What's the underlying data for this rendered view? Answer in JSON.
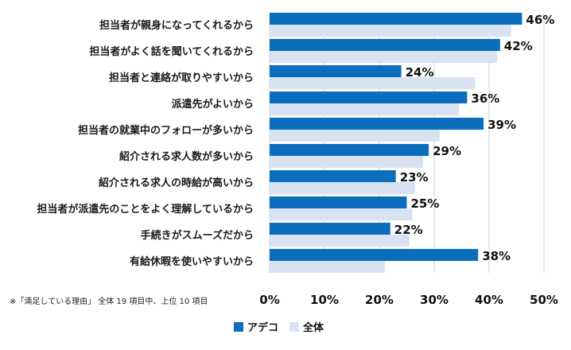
{
  "chart_data": {
    "type": "bar",
    "orientation": "horizontal",
    "categories": [
      "担当者が親身になってくれるから",
      "担当者がよく話を聞いてくれるから",
      "担当者と連絡が取りやすいから",
      "派遣先がよいから",
      "担当者の就業中のフォローが多いから",
      "紹介される求人数が多いから",
      "紹介される求人の時給が高いから",
      "担当者が派遣先のことをよく理解しているから",
      "手続きがスムーズだから",
      "有給休暇を使いやすいから"
    ],
    "series": [
      {
        "name": "アデコ",
        "color": "#0a6ebd",
        "values": [
          46,
          42,
          24,
          36,
          39,
          29,
          23,
          25,
          22,
          38
        ],
        "labels": [
          "46%",
          "42%",
          "24%",
          "36%",
          "39%",
          "29%",
          "23%",
          "25%",
          "22%",
          "38%"
        ]
      },
      {
        "name": "全体",
        "color": "#d9e2f3",
        "values": [
          44,
          41.5,
          37.5,
          34.5,
          31,
          28,
          26.5,
          26,
          25.5,
          21
        ]
      }
    ],
    "xlim": [
      0,
      50
    ],
    "xticks": [
      "0%",
      "10%",
      "20%",
      "30%",
      "40%",
      "50%"
    ],
    "grid": true,
    "legend_position": "bottom"
  },
  "note": "※「満足している理由」 全体 19 項目中、上位 10 項目"
}
